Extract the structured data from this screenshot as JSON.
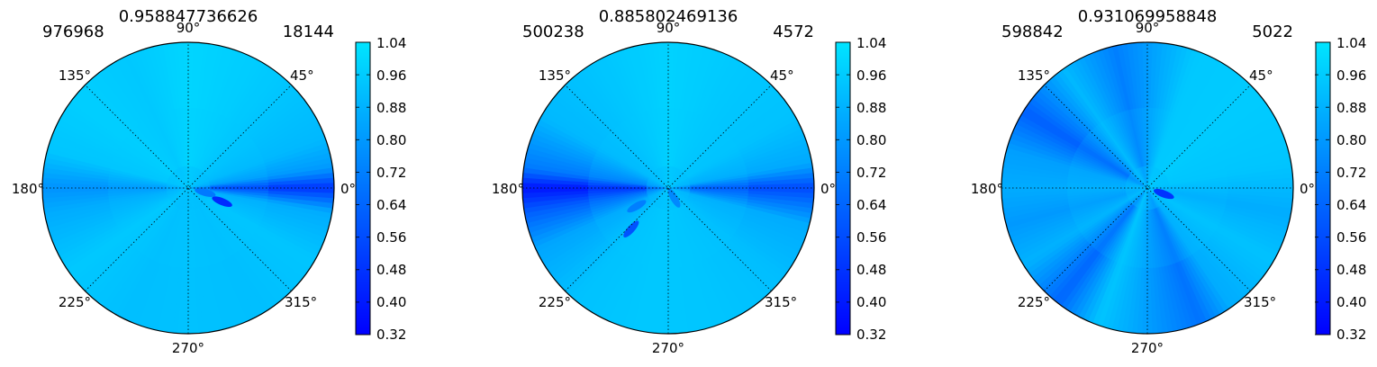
{
  "chart_data": [
    {
      "type": "heatmap",
      "subtype": "polar-contour",
      "title": "0.958847736626",
      "left_label": "976968",
      "right_label": "18144",
      "angle_labels": [
        "0°",
        "45°",
        "90°",
        "135°",
        "180°",
        "225°",
        "270°",
        "315°"
      ],
      "colorbar": {
        "ticks": [
          "0.32",
          "0.40",
          "0.48",
          "0.56",
          "0.64",
          "0.72",
          "0.80",
          "0.88",
          "0.96",
          "1.04"
        ],
        "range": [
          0.32,
          1.04
        ]
      },
      "spokes": [
        {
          "angle": 0,
          "value": 0.48
        },
        {
          "angle": 8,
          "value": 0.8
        },
        {
          "angle": 20,
          "value": 0.9
        },
        {
          "angle": 38,
          "value": 0.93
        },
        {
          "angle": 60,
          "value": 0.96
        },
        {
          "angle": 90,
          "value": 0.99
        },
        {
          "angle": 115,
          "value": 0.95
        },
        {
          "angle": 140,
          "value": 0.97
        },
        {
          "angle": 165,
          "value": 0.94
        },
        {
          "angle": 180,
          "value": 0.78
        },
        {
          "angle": 190,
          "value": 0.86
        },
        {
          "angle": 215,
          "value": 0.95
        },
        {
          "angle": 245,
          "value": 0.92
        },
        {
          "angle": 270,
          "value": 0.93
        },
        {
          "angle": 300,
          "value": 0.92
        },
        {
          "angle": 330,
          "value": 0.94
        },
        {
          "angle": 350,
          "value": 0.86
        }
      ],
      "spots": [
        {
          "angle": 338,
          "r": 0.25,
          "value": 0.45
        },
        {
          "angle": 345,
          "r": 0.12,
          "value": 0.7
        }
      ]
    },
    {
      "type": "heatmap",
      "subtype": "polar-contour",
      "title": "0.885802469136",
      "left_label": "500238",
      "right_label": "4572",
      "angle_labels": [
        "0°",
        "45°",
        "90°",
        "135°",
        "180°",
        "225°",
        "270°",
        "315°"
      ],
      "colorbar": {
        "ticks": [
          "0.32",
          "0.40",
          "0.48",
          "0.56",
          "0.64",
          "0.72",
          "0.80",
          "0.88",
          "0.96",
          "1.04"
        ],
        "range": [
          0.32,
          1.04
        ]
      },
      "spokes": [
        {
          "angle": 0,
          "value": 0.55
        },
        {
          "angle": 10,
          "value": 0.85
        },
        {
          "angle": 30,
          "value": 0.93
        },
        {
          "angle": 60,
          "value": 0.95
        },
        {
          "angle": 90,
          "value": 0.98
        },
        {
          "angle": 120,
          "value": 0.94
        },
        {
          "angle": 150,
          "value": 0.9
        },
        {
          "angle": 172,
          "value": 0.7
        },
        {
          "angle": 180,
          "value": 0.38
        },
        {
          "angle": 190,
          "value": 0.62
        },
        {
          "angle": 205,
          "value": 0.84
        },
        {
          "angle": 230,
          "value": 0.93
        },
        {
          "angle": 260,
          "value": 0.95
        },
        {
          "angle": 290,
          "value": 0.94
        },
        {
          "angle": 320,
          "value": 0.92
        },
        {
          "angle": 345,
          "value": 0.86
        }
      ],
      "spots": [
        {
          "angle": 228,
          "r": 0.38,
          "value": 0.58
        },
        {
          "angle": 210,
          "r": 0.25,
          "value": 0.72
        },
        {
          "angle": 300,
          "r": 0.08,
          "value": 0.75
        }
      ]
    },
    {
      "type": "heatmap",
      "subtype": "polar-contour",
      "title": "0.931069958848",
      "left_label": "598842",
      "right_label": "5022",
      "angle_labels": [
        "0°",
        "45°",
        "90°",
        "135°",
        "180°",
        "225°",
        "270°",
        "315°"
      ],
      "colorbar": {
        "ticks": [
          "0.32",
          "0.40",
          "0.48",
          "0.56",
          "0.64",
          "0.72",
          "0.80",
          "0.88",
          "0.96",
          "1.04"
        ],
        "range": [
          0.32,
          1.04
        ]
      },
      "spokes": [
        {
          "angle": 0,
          "value": 0.9
        },
        {
          "angle": 10,
          "value": 0.94
        },
        {
          "angle": 40,
          "value": 0.96
        },
        {
          "angle": 70,
          "value": 0.95
        },
        {
          "angle": 103,
          "value": 0.72
        },
        {
          "angle": 125,
          "value": 0.9
        },
        {
          "angle": 148,
          "value": 0.62
        },
        {
          "angle": 165,
          "value": 0.82
        },
        {
          "angle": 180,
          "value": 0.86
        },
        {
          "angle": 195,
          "value": 0.8
        },
        {
          "angle": 212,
          "value": 0.88
        },
        {
          "angle": 232,
          "value": 0.64
        },
        {
          "angle": 250,
          "value": 0.94
        },
        {
          "angle": 292,
          "value": 0.68
        },
        {
          "angle": 305,
          "value": 0.86
        },
        {
          "angle": 330,
          "value": 0.93
        },
        {
          "angle": 350,
          "value": 0.86
        }
      ],
      "spots": [
        {
          "angle": 340,
          "r": 0.12,
          "value": 0.48
        }
      ]
    }
  ]
}
